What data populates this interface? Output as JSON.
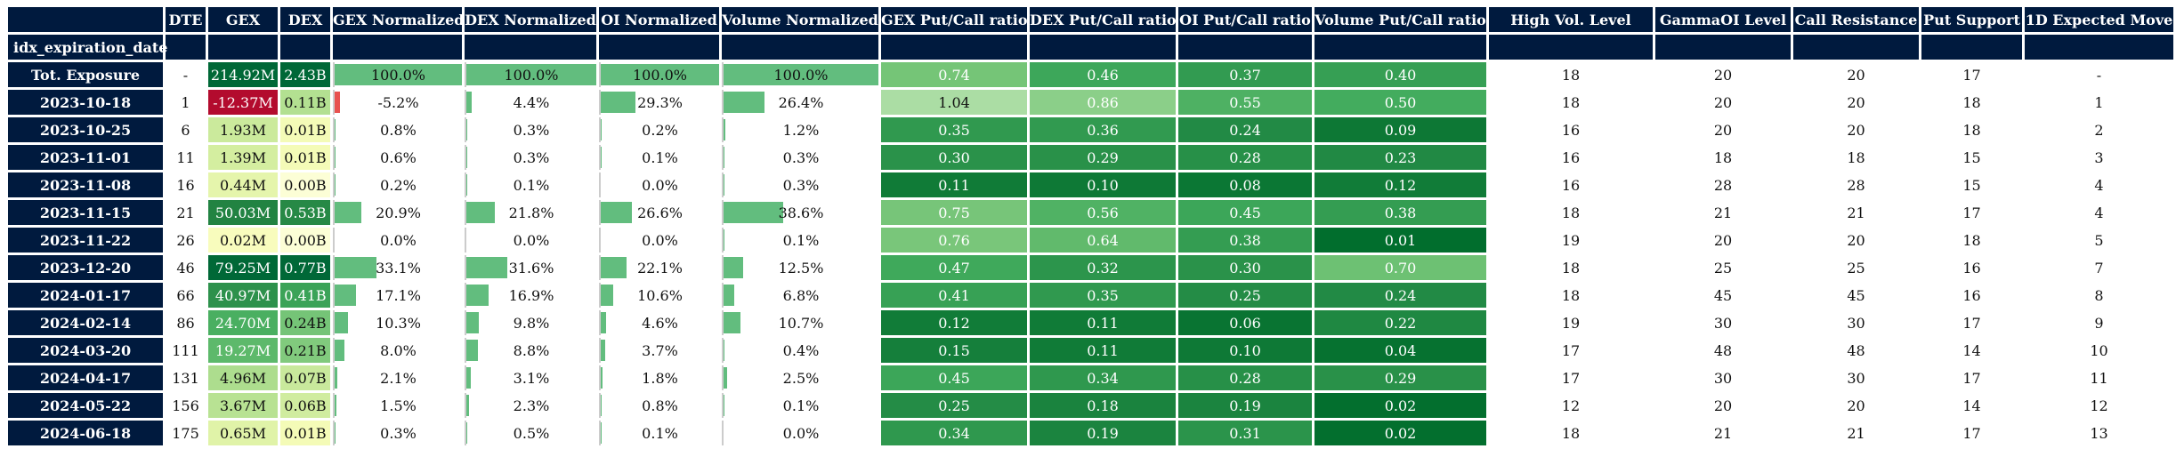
{
  "table": {
    "columns": [
      "",
      "DTE",
      "GEX",
      "DEX",
      "GEX Normalized",
      "DEX Normalized",
      "OI Normalized",
      "Volume Normalized",
      "GEX Put/Call ratio",
      "DEX Put/Call ratio",
      "OI Put/Call ratio",
      "Volume Put/Call ratio",
      "High Vol. Level",
      "GammaOI Level",
      "Call Resistance",
      "Put Support",
      "1D Expected Move"
    ],
    "index_name": "idx_expiration_date",
    "rows": [
      {
        "label": "Tot. Exposure",
        "dte": "-",
        "gex": "214.92M",
        "dex": "2.43B",
        "gex_n": "100.0%",
        "dex_n": "100.0%",
        "oi_n": "100.0%",
        "vol_n": "100.0%",
        "gex_pc": "0.74",
        "dex_pc": "0.46",
        "oi_pc": "0.37",
        "vol_pc": "0.40",
        "hvl": "18",
        "goi": "20",
        "cr": "20",
        "ps": "17",
        "em": "-"
      },
      {
        "label": "2023-10-18",
        "dte": "1",
        "gex": "-12.37M",
        "dex": "0.11B",
        "gex_n": "-5.2%",
        "dex_n": "4.4%",
        "oi_n": "29.3%",
        "vol_n": "26.4%",
        "gex_pc": "1.04",
        "dex_pc": "0.86",
        "oi_pc": "0.55",
        "vol_pc": "0.50",
        "hvl": "18",
        "goi": "20",
        "cr": "20",
        "ps": "18",
        "em": "1"
      },
      {
        "label": "2023-10-25",
        "dte": "6",
        "gex": "1.93M",
        "dex": "0.01B",
        "gex_n": "0.8%",
        "dex_n": "0.3%",
        "oi_n": "0.2%",
        "vol_n": "1.2%",
        "gex_pc": "0.35",
        "dex_pc": "0.36",
        "oi_pc": "0.24",
        "vol_pc": "0.09",
        "hvl": "16",
        "goi": "20",
        "cr": "20",
        "ps": "18",
        "em": "2"
      },
      {
        "label": "2023-11-01",
        "dte": "11",
        "gex": "1.39M",
        "dex": "0.01B",
        "gex_n": "0.6%",
        "dex_n": "0.3%",
        "oi_n": "0.1%",
        "vol_n": "0.3%",
        "gex_pc": "0.30",
        "dex_pc": "0.29",
        "oi_pc": "0.28",
        "vol_pc": "0.23",
        "hvl": "16",
        "goi": "18",
        "cr": "18",
        "ps": "15",
        "em": "3"
      },
      {
        "label": "2023-11-08",
        "dte": "16",
        "gex": "0.44M",
        "dex": "0.00B",
        "gex_n": "0.2%",
        "dex_n": "0.1%",
        "oi_n": "0.0%",
        "vol_n": "0.3%",
        "gex_pc": "0.11",
        "dex_pc": "0.10",
        "oi_pc": "0.08",
        "vol_pc": "0.12",
        "hvl": "16",
        "goi": "28",
        "cr": "28",
        "ps": "15",
        "em": "4"
      },
      {
        "label": "2023-11-15",
        "dte": "21",
        "gex": "50.03M",
        "dex": "0.53B",
        "gex_n": "20.9%",
        "dex_n": "21.8%",
        "oi_n": "26.6%",
        "vol_n": "38.6%",
        "gex_pc": "0.75",
        "dex_pc": "0.56",
        "oi_pc": "0.45",
        "vol_pc": "0.38",
        "hvl": "18",
        "goi": "21",
        "cr": "21",
        "ps": "17",
        "em": "4"
      },
      {
        "label": "2023-11-22",
        "dte": "26",
        "gex": "0.02M",
        "dex": "0.00B",
        "gex_n": "0.0%",
        "dex_n": "0.0%",
        "oi_n": "0.0%",
        "vol_n": "0.1%",
        "gex_pc": "0.76",
        "dex_pc": "0.64",
        "oi_pc": "0.38",
        "vol_pc": "0.01",
        "hvl": "19",
        "goi": "20",
        "cr": "20",
        "ps": "18",
        "em": "5"
      },
      {
        "label": "2023-12-20",
        "dte": "46",
        "gex": "79.25M",
        "dex": "0.77B",
        "gex_n": "33.1%",
        "dex_n": "31.6%",
        "oi_n": "22.1%",
        "vol_n": "12.5%",
        "gex_pc": "0.47",
        "dex_pc": "0.32",
        "oi_pc": "0.30",
        "vol_pc": "0.70",
        "hvl": "18",
        "goi": "25",
        "cr": "25",
        "ps": "16",
        "em": "7"
      },
      {
        "label": "2024-01-17",
        "dte": "66",
        "gex": "40.97M",
        "dex": "0.41B",
        "gex_n": "17.1%",
        "dex_n": "16.9%",
        "oi_n": "10.6%",
        "vol_n": "6.8%",
        "gex_pc": "0.41",
        "dex_pc": "0.35",
        "oi_pc": "0.25",
        "vol_pc": "0.24",
        "hvl": "18",
        "goi": "45",
        "cr": "45",
        "ps": "16",
        "em": "8"
      },
      {
        "label": "2024-02-14",
        "dte": "86",
        "gex": "24.70M",
        "dex": "0.24B",
        "gex_n": "10.3%",
        "dex_n": "9.8%",
        "oi_n": "4.6%",
        "vol_n": "10.7%",
        "gex_pc": "0.12",
        "dex_pc": "0.11",
        "oi_pc": "0.06",
        "vol_pc": "0.22",
        "hvl": "19",
        "goi": "30",
        "cr": "30",
        "ps": "17",
        "em": "9"
      },
      {
        "label": "2024-03-20",
        "dte": "111",
        "gex": "19.27M",
        "dex": "0.21B",
        "gex_n": "8.0%",
        "dex_n": "8.8%",
        "oi_n": "3.7%",
        "vol_n": "0.4%",
        "gex_pc": "0.15",
        "dex_pc": "0.11",
        "oi_pc": "0.10",
        "vol_pc": "0.04",
        "hvl": "17",
        "goi": "48",
        "cr": "48",
        "ps": "14",
        "em": "10"
      },
      {
        "label": "2024-04-17",
        "dte": "131",
        "gex": "4.96M",
        "dex": "0.07B",
        "gex_n": "2.1%",
        "dex_n": "3.1%",
        "oi_n": "1.8%",
        "vol_n": "2.5%",
        "gex_pc": "0.45",
        "dex_pc": "0.34",
        "oi_pc": "0.28",
        "vol_pc": "0.29",
        "hvl": "17",
        "goi": "30",
        "cr": "30",
        "ps": "17",
        "em": "11"
      },
      {
        "label": "2024-05-22",
        "dte": "156",
        "gex": "3.67M",
        "dex": "0.06B",
        "gex_n": "1.5%",
        "dex_n": "2.3%",
        "oi_n": "0.8%",
        "vol_n": "0.1%",
        "gex_pc": "0.25",
        "dex_pc": "0.18",
        "oi_pc": "0.19",
        "vol_pc": "0.02",
        "hvl": "12",
        "goi": "20",
        "cr": "20",
        "ps": "14",
        "em": "12"
      },
      {
        "label": "2024-06-18",
        "dte": "175",
        "gex": "0.65M",
        "dex": "0.01B",
        "gex_n": "0.3%",
        "dex_n": "0.5%",
        "oi_n": "0.1%",
        "vol_n": "0.0%",
        "gex_pc": "0.34",
        "dex_pc": "0.19",
        "oi_pc": "0.31",
        "vol_pc": "0.02",
        "hvl": "18",
        "goi": "21",
        "cr": "21",
        "ps": "17",
        "em": "13"
      }
    ]
  },
  "colors": {
    "header_bg": "#001a3e",
    "bar_positive": "#62bd7e",
    "bar_negative": "#e8524f"
  }
}
